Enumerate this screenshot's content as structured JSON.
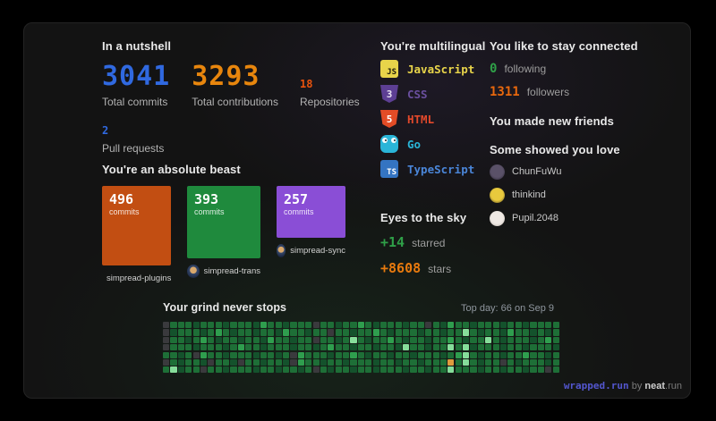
{
  "nutshell": {
    "title": "In a nutshell",
    "stats": [
      {
        "value": "3041",
        "label": "Total commits",
        "color": "#3069e0",
        "size": "big"
      },
      {
        "value": "3293",
        "label": "Total contributions",
        "color": "#e8860d",
        "size": "big"
      },
      {
        "value": "18",
        "label": "Repositories",
        "color": "#e8530e",
        "size": "small"
      },
      {
        "value": "2",
        "label": "Pull requests",
        "color": "#3069e0",
        "size": "small"
      }
    ]
  },
  "beast": {
    "title": "You're an absolute beast",
    "commits_label": "commits",
    "repos": [
      {
        "commits": "496",
        "name": "simpread-plugins",
        "color": "#c24e12",
        "width": 77,
        "height": 89
      },
      {
        "commits": "393",
        "name": "simpread-trans",
        "color": "#1f8a3d",
        "width": 82,
        "height": 81
      },
      {
        "commits": "257",
        "name": "simpread-sync",
        "color": "#8a4ed6",
        "width": 77,
        "height": 58
      }
    ]
  },
  "multilingual": {
    "title": "You're multilingual",
    "languages": [
      {
        "name": "JavaScript",
        "color": "#e8d44a",
        "icon": "js",
        "badge": "JS"
      },
      {
        "name": "CSS",
        "color": "#6a4f9e",
        "icon": "css",
        "badge": "3"
      },
      {
        "name": "HTML",
        "color": "#e3492b",
        "icon": "html",
        "badge": "5"
      },
      {
        "name": "Go",
        "color": "#2ab5d8",
        "icon": "go",
        "badge": ""
      },
      {
        "name": "TypeScript",
        "color": "#4a86d8",
        "icon": "ts",
        "badge": "TS"
      }
    ]
  },
  "stars": {
    "title": "Eyes to the sky",
    "starred_value": "+14",
    "starred_label": "starred",
    "starred_color": "#2fa048",
    "stars_value": "+8608",
    "stars_label": "stars",
    "stars_color": "#e87a0e"
  },
  "connected": {
    "title": "You like to stay connected",
    "following_value": "0",
    "following_label": "following",
    "following_color": "#2fa048",
    "followers_value": "1311",
    "followers_label": "followers",
    "followers_color": "#e8680d"
  },
  "friends": {
    "title": "You made new friends"
  },
  "love": {
    "title": "Some showed you love",
    "users": [
      {
        "name": "ChunFuWu",
        "avatar_colors": [
          "#5a5168",
          "#262130"
        ]
      },
      {
        "name": "thinkind",
        "avatar_colors": [
          "#e8c93d",
          "#45391c"
        ]
      },
      {
        "name": "Pupil.2048",
        "avatar_colors": [
          "#efe9e4",
          "#b2aaa2"
        ]
      }
    ]
  },
  "grind": {
    "title": "Your grind never stops",
    "top_day": "Top day: 66 on Sep 9",
    "levels": {
      "0": "#3a3a3d",
      "1": "#14522c",
      "2": "#1e6f37",
      "3": "#2f9e4e",
      "4": "#86dd9a",
      "T": "#e09b3d"
    },
    "grid_rows": [
      [
        "0222122212",
        "2213221222",
        "0221223212",
        "2212202132",
        "2122212212",
        "222"
      ],
      [
        "0122212321",
        "2212213221",
        "2202212232",
        "1222122122",
        "4212213221",
        "212"
      ],
      [
        "0221232122",
        "1221322122",
        "0221242122",
        "3212212232",
        "1224212221",
        "232"
      ],
      [
        "0222122212",
        "3221222122",
        "1232212212",
        "2142212242",
        "4122212212",
        "221"
      ],
      [
        "2212032212",
        "2212212032",
        "2212232122",
        "1221222123",
        "4212212232",
        "212"
      ],
      [
        "0212210221",
        "0221221032",
        "2122122212",
        "21221222T2",
        "4212202122",
        "212"
      ],
      [
        "2412202212",
        "2212212212",
        "0212212212",
        "2212212242",
        "2212212212",
        "202"
      ]
    ]
  },
  "footer": {
    "brand": "wrapped.run",
    "by": " by ",
    "site": "neat",
    "tld": ".run"
  }
}
